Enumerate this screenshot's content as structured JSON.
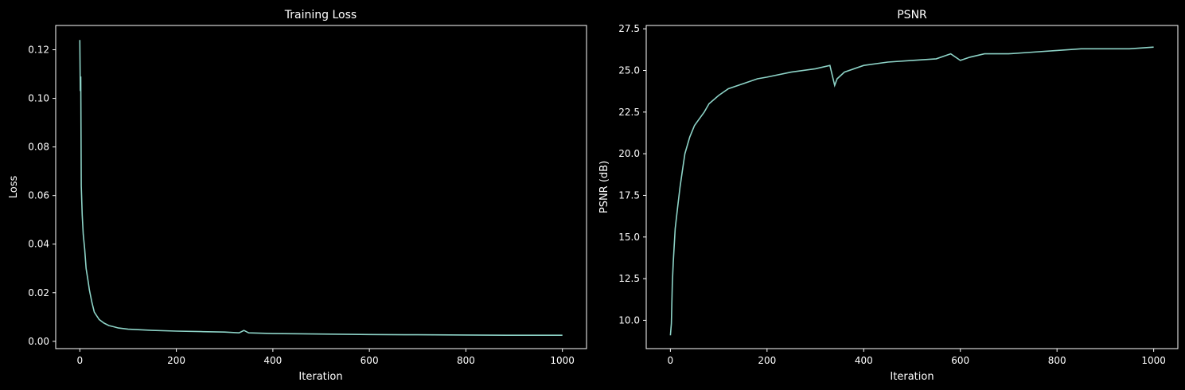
{
  "chart_data": [
    {
      "type": "line",
      "title": "Training Loss",
      "xlabel": "Iteration",
      "ylabel": "Loss",
      "xlim": [
        -50,
        1050
      ],
      "ylim": [
        -0.003,
        0.13
      ],
      "xticks": [
        0,
        200,
        400,
        600,
        800,
        1000
      ],
      "yticks": [
        0.0,
        0.02,
        0.04,
        0.06,
        0.08,
        0.1,
        0.12
      ],
      "ytick_labels": [
        "0.00",
        "0.02",
        "0.04",
        "0.06",
        "0.08",
        "0.10",
        "0.12"
      ],
      "grid": false,
      "line_color": "#8dd3c7",
      "series": [
        {
          "x": [
            0,
            1,
            2,
            3,
            5,
            7,
            10,
            13,
            17,
            20,
            25,
            30,
            40,
            50,
            60,
            70,
            80,
            100,
            150,
            200,
            250,
            300,
            330,
            340,
            350,
            400,
            500,
            600,
            700,
            800,
            900,
            1000
          ],
          "values": [
            0.124,
            0.103,
            0.109,
            0.064,
            0.052,
            0.044,
            0.038,
            0.03,
            0.025,
            0.021,
            0.016,
            0.012,
            0.009,
            0.0075,
            0.0065,
            0.006,
            0.0055,
            0.005,
            0.0045,
            0.0042,
            0.004,
            0.0038,
            0.0035,
            0.0045,
            0.0035,
            0.0032,
            0.003,
            0.0028,
            0.0027,
            0.0026,
            0.0025,
            0.0025
          ]
        }
      ]
    },
    {
      "type": "line",
      "title": "PSNR",
      "xlabel": "Iteration",
      "ylabel": "PSNR (dB)",
      "xlim": [
        -50,
        1050
      ],
      "ylim": [
        8.3,
        27.7
      ],
      "xticks": [
        0,
        200,
        400,
        600,
        800,
        1000
      ],
      "yticks": [
        10.0,
        12.5,
        15.0,
        17.5,
        20.0,
        22.5,
        25.0,
        27.5
      ],
      "ytick_labels": [
        "10.0",
        "12.5",
        "15.0",
        "17.5",
        "20.0",
        "22.5",
        "25.0",
        "27.5"
      ],
      "grid": false,
      "line_color": "#8dd3c7",
      "series": [
        {
          "x": [
            0,
            2,
            4,
            6,
            10,
            15,
            20,
            25,
            30,
            40,
            50,
            60,
            70,
            80,
            100,
            120,
            150,
            180,
            200,
            250,
            300,
            330,
            340,
            345,
            360,
            400,
            450,
            500,
            550,
            580,
            600,
            620,
            650,
            700,
            750,
            800,
            850,
            900,
            950,
            1000
          ],
          "values": [
            9.1,
            9.8,
            12.2,
            13.5,
            15.5,
            16.8,
            18.0,
            19.0,
            20.0,
            21.0,
            21.7,
            22.1,
            22.5,
            23.0,
            23.5,
            23.9,
            24.2,
            24.5,
            24.6,
            24.9,
            25.1,
            25.3,
            24.1,
            24.5,
            24.9,
            25.3,
            25.5,
            25.6,
            25.7,
            26.0,
            25.6,
            25.8,
            26.0,
            26.0,
            26.1,
            26.2,
            26.3,
            26.3,
            26.3,
            26.4
          ]
        }
      ]
    }
  ]
}
